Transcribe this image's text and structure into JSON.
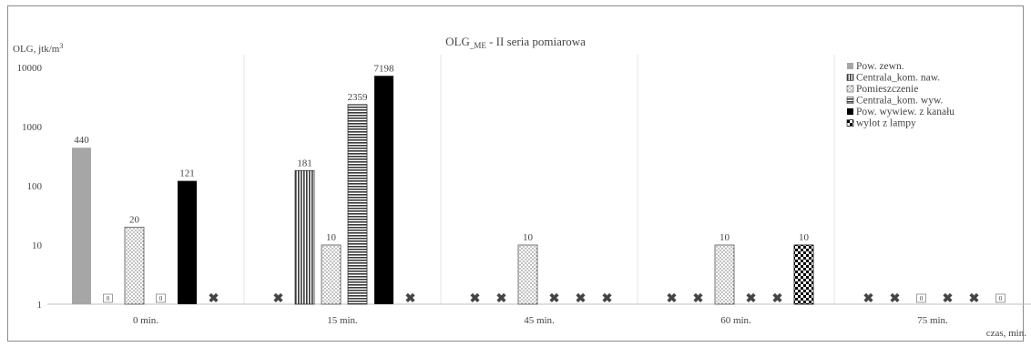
{
  "chart_data": {
    "type": "bar",
    "title_main": "OLG",
    "title_sub": "_ME",
    "title_rest": " - II seria pomiarowa",
    "ylabel": "OLG, jtk/m",
    "ylabel_sup": "3",
    "xlabel": "czas, min.",
    "yscale": "log",
    "ylim": [
      1,
      10000
    ],
    "yticks": [
      "1",
      "10",
      "100",
      "1000",
      "10000"
    ],
    "grid": "vertical",
    "legend_position": "top-right",
    "categories": [
      "0 min.",
      "15 min.",
      "45 min.",
      "60 min.",
      "75 min."
    ],
    "series": [
      {
        "name": "Pow. zewn.",
        "pattern": "solid-gray",
        "values": [
          440,
          1,
          1,
          1,
          1
        ],
        "labels": [
          "440",
          "",
          "",
          "",
          ""
        ]
      },
      {
        "name": "Centrala_kom. naw.",
        "pattern": "vertical-lines",
        "values": [
          0,
          181,
          1,
          1,
          1
        ],
        "labels": [
          "0",
          "181",
          "",
          "",
          ""
        ]
      },
      {
        "name": "Pomieszczenie",
        "pattern": "dots",
        "values": [
          20,
          10,
          10,
          10,
          0
        ],
        "labels": [
          "20",
          "10",
          "10",
          "10",
          "0"
        ]
      },
      {
        "name": "Centrala_kom. wyw.",
        "pattern": "horizontal-lines",
        "values": [
          0,
          2359,
          1,
          1,
          1
        ],
        "labels": [
          "0",
          "2359",
          "",
          "",
          ""
        ]
      },
      {
        "name": "Pow. wywiew. z kanału",
        "pattern": "solid-black",
        "values": [
          121,
          7198,
          1,
          1,
          1
        ],
        "labels": [
          "121",
          "7198",
          "",
          "",
          ""
        ]
      },
      {
        "name": "wylot z lampy",
        "pattern": "checker",
        "values": [
          1,
          1,
          1,
          10,
          0
        ],
        "labels": [
          "",
          "",
          "",
          "10",
          "0"
        ]
      }
    ],
    "colors": {
      "axis": "#bfbfbf",
      "grid": "#e6e6e6",
      "gray": "#a6a6a6",
      "dark": "#404040",
      "black": "#000000"
    }
  }
}
